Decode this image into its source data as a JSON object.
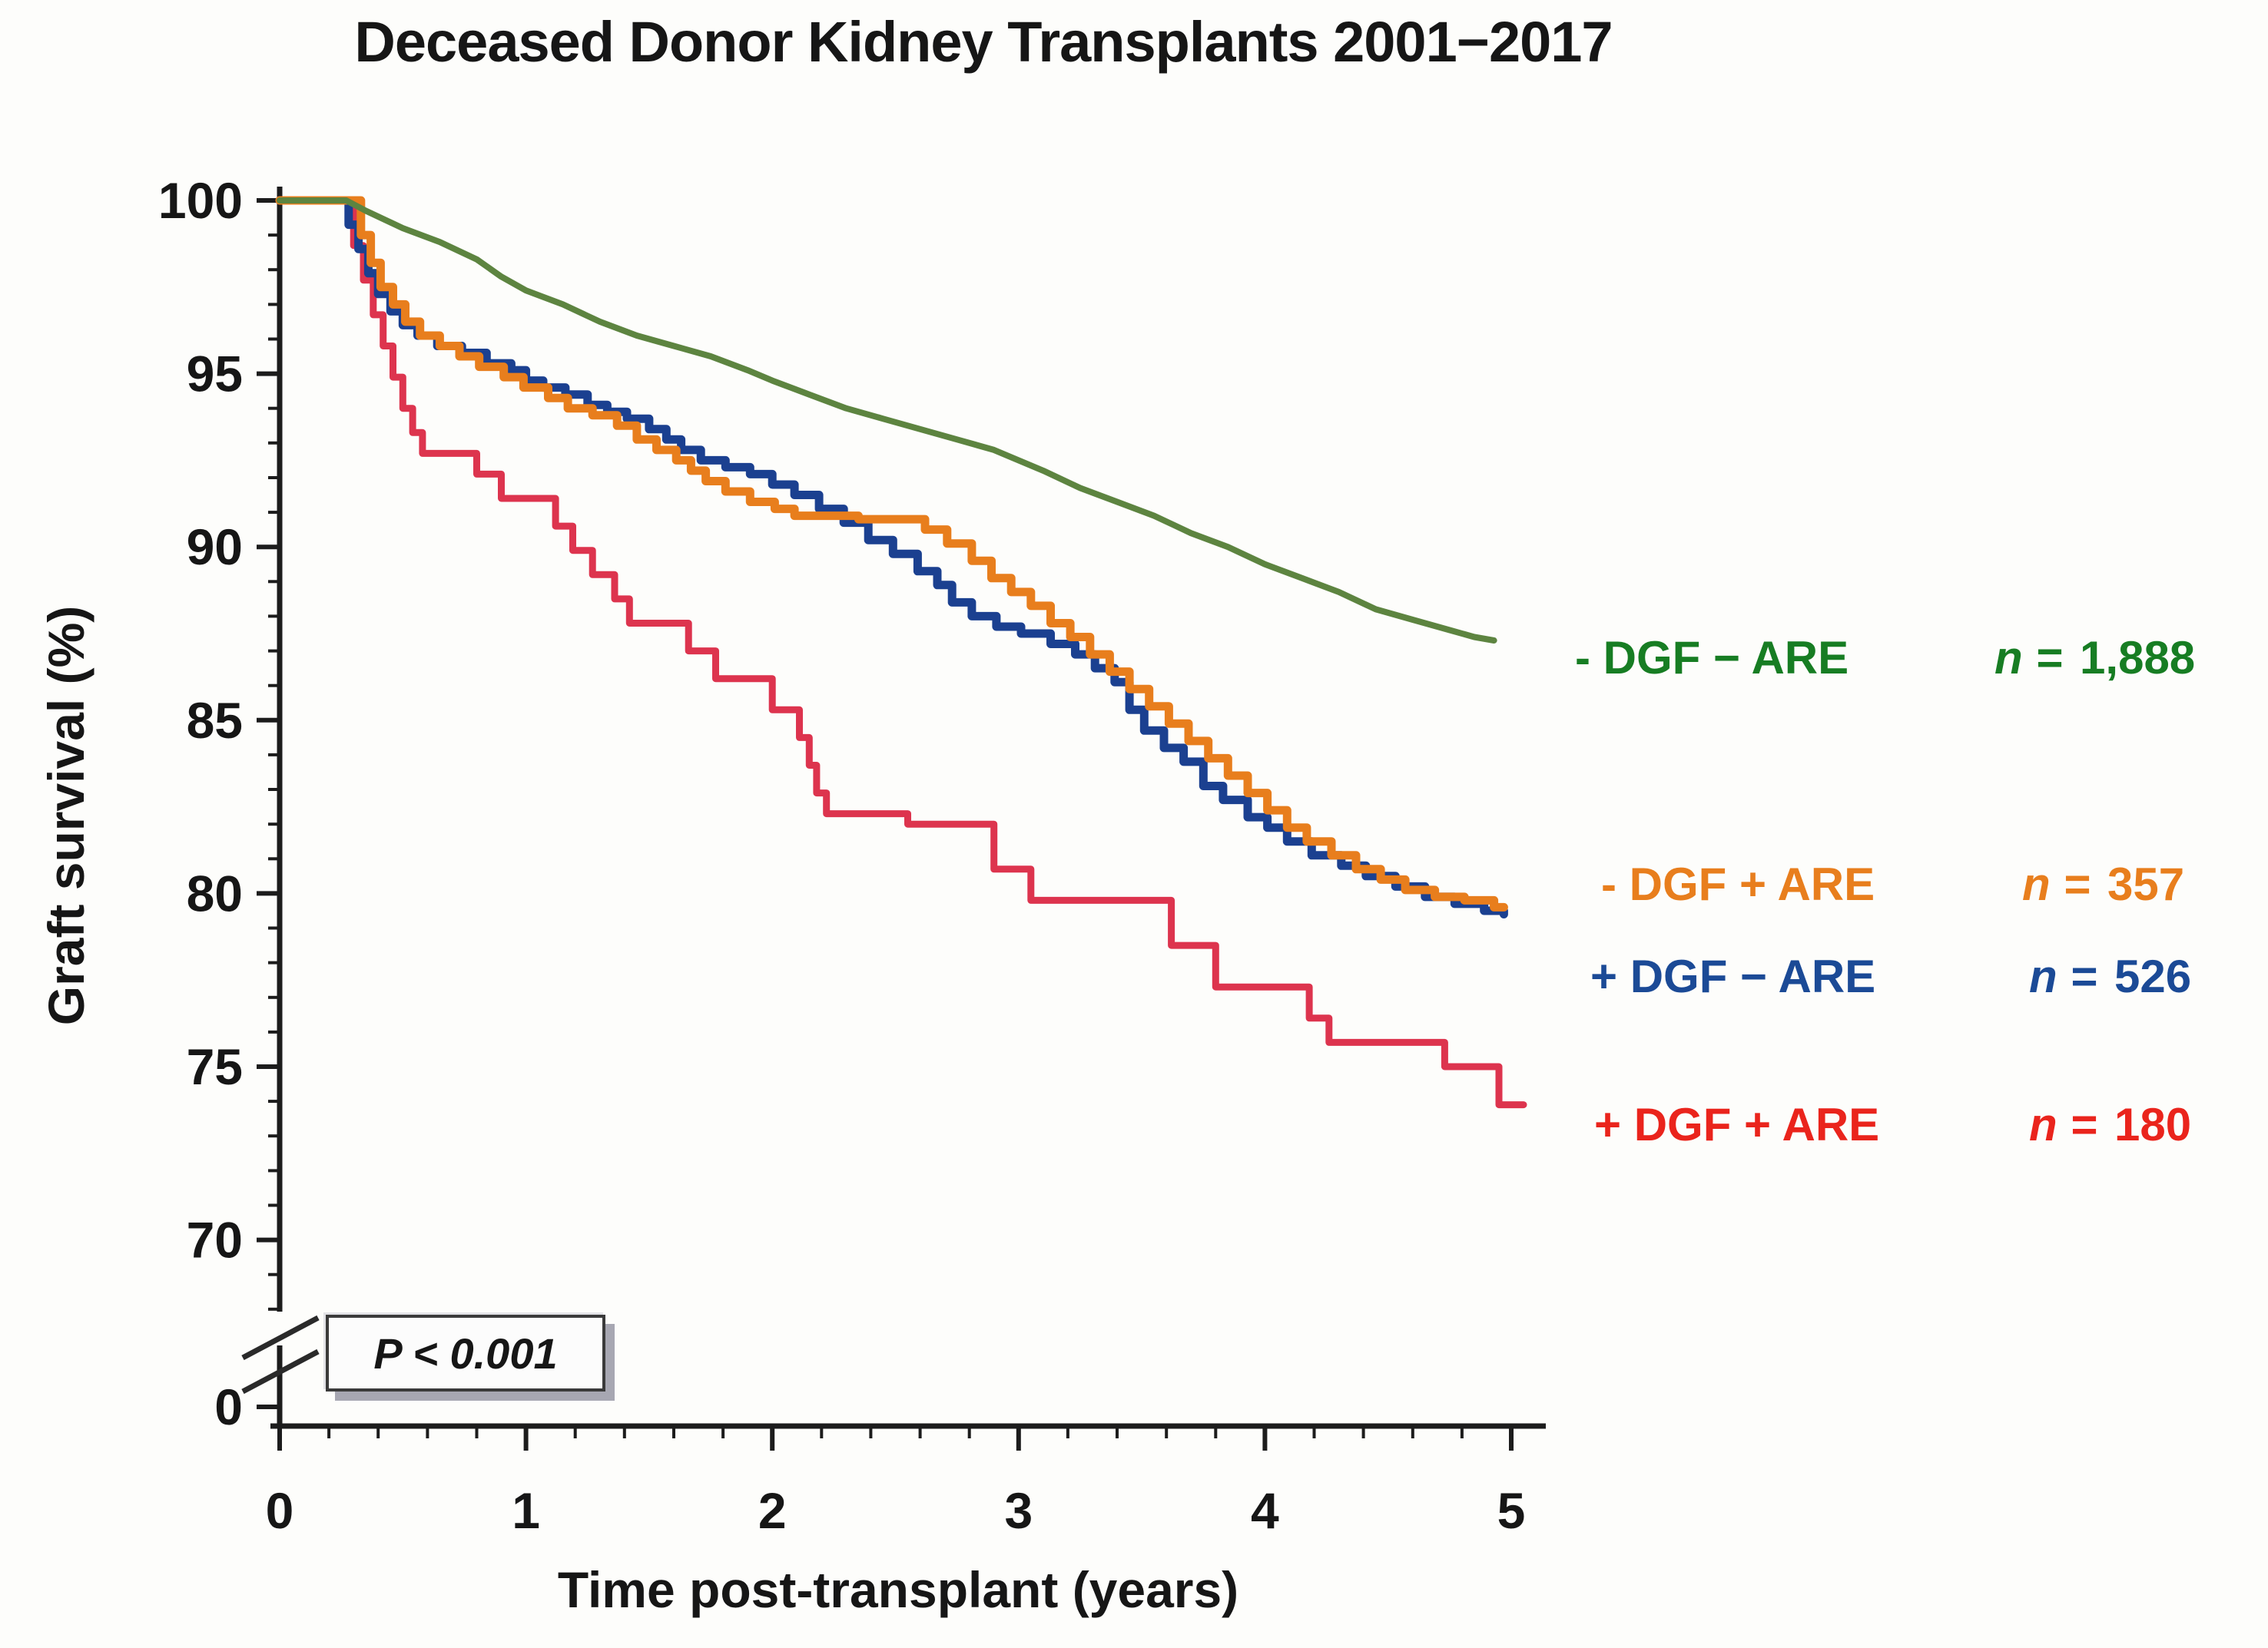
{
  "title": "Deceased Donor Kidney Transplants 2001−2017",
  "legend": {
    "n_prefix": "n = "
  },
  "chart_data": {
    "type": "line",
    "title": "Deceased Donor Kidney Transplants 2001−2017",
    "xlabel": "Time post-transplant (years)",
    "ylabel": "Graft survival (%)",
    "annotation": "P < 0.001",
    "x_ticks": [
      0,
      1,
      2,
      3,
      4,
      5
    ],
    "y_ticks": [
      100,
      95,
      90,
      85,
      80,
      75,
      70
    ],
    "y_break_label": "0",
    "x_minor_step": 0.2,
    "y_minor_step": 1,
    "xlim": [
      0,
      5.15
    ],
    "ylim": [
      70,
      100
    ],
    "y_axis_break": true,
    "grid": false,
    "legend_position": "right",
    "series": [
      {
        "id": "no-dgf-no-are",
        "group_label": "- DGF − ARE",
        "n_value": "1,888",
        "n": 1888,
        "color": "#5d8440",
        "legend_color": "#177d23",
        "style": "line",
        "points": [
          [
            0,
            100
          ],
          [
            0.27,
            100
          ],
          [
            0.35,
            99.7
          ],
          [
            0.5,
            99.2
          ],
          [
            0.65,
            98.8
          ],
          [
            0.8,
            98.3
          ],
          [
            0.9,
            97.8
          ],
          [
            1.0,
            97.4
          ],
          [
            1.15,
            97.0
          ],
          [
            1.3,
            96.5
          ],
          [
            1.45,
            96.1
          ],
          [
            1.6,
            95.8
          ],
          [
            1.75,
            95.5
          ],
          [
            1.9,
            95.1
          ],
          [
            2.0,
            94.8
          ],
          [
            2.15,
            94.4
          ],
          [
            2.3,
            94.0
          ],
          [
            2.45,
            93.7
          ],
          [
            2.6,
            93.4
          ],
          [
            2.75,
            93.1
          ],
          [
            2.9,
            92.8
          ],
          [
            3.0,
            92.5
          ],
          [
            3.1,
            92.2
          ],
          [
            3.25,
            91.7
          ],
          [
            3.4,
            91.3
          ],
          [
            3.55,
            90.9
          ],
          [
            3.7,
            90.4
          ],
          [
            3.85,
            90.0
          ],
          [
            4.0,
            89.5
          ],
          [
            4.15,
            89.1
          ],
          [
            4.3,
            88.7
          ],
          [
            4.45,
            88.2
          ],
          [
            4.6,
            87.9
          ],
          [
            4.75,
            87.6
          ],
          [
            4.85,
            87.4
          ],
          [
            4.93,
            87.3
          ]
        ]
      },
      {
        "id": "no-dgf-plus-are",
        "group_label": "- DGF + ARE",
        "n_value": "357",
        "n": 357,
        "color": "#e87e1d",
        "legend_color": "#e87e1d",
        "style": "step",
        "points": [
          [
            0,
            100
          ],
          [
            0.3,
            100
          ],
          [
            0.33,
            99.0
          ],
          [
            0.37,
            98.2
          ],
          [
            0.41,
            97.5
          ],
          [
            0.46,
            97.0
          ],
          [
            0.51,
            96.5
          ],
          [
            0.57,
            96.1
          ],
          [
            0.65,
            95.8
          ],
          [
            0.73,
            95.5
          ],
          [
            0.81,
            95.2
          ],
          [
            0.91,
            94.9
          ],
          [
            0.99,
            94.6
          ],
          [
            1.09,
            94.3
          ],
          [
            1.17,
            94.0
          ],
          [
            1.27,
            93.8
          ],
          [
            1.37,
            93.5
          ],
          [
            1.45,
            93.1
          ],
          [
            1.53,
            92.8
          ],
          [
            1.61,
            92.5
          ],
          [
            1.67,
            92.2
          ],
          [
            1.73,
            91.9
          ],
          [
            1.81,
            91.6
          ],
          [
            1.91,
            91.3
          ],
          [
            2.01,
            91.1
          ],
          [
            2.09,
            90.9
          ],
          [
            2.35,
            90.8
          ],
          [
            2.62,
            90.5
          ],
          [
            2.71,
            90.1
          ],
          [
            2.81,
            89.6
          ],
          [
            2.89,
            89.1
          ],
          [
            2.97,
            88.7
          ],
          [
            3.05,
            88.3
          ],
          [
            3.13,
            87.8
          ],
          [
            3.21,
            87.4
          ],
          [
            3.29,
            86.9
          ],
          [
            3.37,
            86.4
          ],
          [
            3.45,
            85.9
          ],
          [
            3.53,
            85.4
          ],
          [
            3.61,
            84.9
          ],
          [
            3.69,
            84.4
          ],
          [
            3.77,
            83.9
          ],
          [
            3.85,
            83.4
          ],
          [
            3.93,
            82.9
          ],
          [
            4.01,
            82.4
          ],
          [
            4.09,
            81.9
          ],
          [
            4.17,
            81.5
          ],
          [
            4.27,
            81.1
          ],
          [
            4.37,
            80.7
          ],
          [
            4.47,
            80.4
          ],
          [
            4.57,
            80.1
          ],
          [
            4.69,
            79.9
          ],
          [
            4.81,
            79.8
          ],
          [
            4.93,
            79.6
          ],
          [
            4.97,
            79.6
          ]
        ]
      },
      {
        "id": "plus-dgf-no-are",
        "group_label": "+ DGF − ARE",
        "n_value": "526",
        "n": 526,
        "color": "#1b4090",
        "legend_color": "#1b4a96",
        "style": "step",
        "points": [
          [
            0,
            100
          ],
          [
            0.25,
            100
          ],
          [
            0.28,
            99.3
          ],
          [
            0.32,
            98.6
          ],
          [
            0.36,
            97.9
          ],
          [
            0.4,
            97.3
          ],
          [
            0.45,
            96.8
          ],
          [
            0.5,
            96.4
          ],
          [
            0.56,
            96.1
          ],
          [
            0.64,
            95.8
          ],
          [
            0.74,
            95.6
          ],
          [
            0.84,
            95.3
          ],
          [
            0.94,
            95.1
          ],
          [
            1.0,
            94.8
          ],
          [
            1.07,
            94.6
          ],
          [
            1.16,
            94.4
          ],
          [
            1.25,
            94.1
          ],
          [
            1.33,
            93.9
          ],
          [
            1.41,
            93.7
          ],
          [
            1.5,
            93.4
          ],
          [
            1.57,
            93.1
          ],
          [
            1.63,
            92.8
          ],
          [
            1.71,
            92.5
          ],
          [
            1.81,
            92.3
          ],
          [
            1.91,
            92.1
          ],
          [
            2.0,
            91.8
          ],
          [
            2.09,
            91.5
          ],
          [
            2.19,
            91.1
          ],
          [
            2.29,
            90.7
          ],
          [
            2.39,
            90.2
          ],
          [
            2.49,
            89.8
          ],
          [
            2.59,
            89.3
          ],
          [
            2.67,
            88.9
          ],
          [
            2.73,
            88.4
          ],
          [
            2.81,
            88.0
          ],
          [
            2.91,
            87.7
          ],
          [
            3.01,
            87.5
          ],
          [
            3.13,
            87.2
          ],
          [
            3.23,
            86.9
          ],
          [
            3.31,
            86.5
          ],
          [
            3.39,
            86.1
          ],
          [
            3.45,
            85.3
          ],
          [
            3.51,
            84.7
          ],
          [
            3.59,
            84.2
          ],
          [
            3.67,
            83.8
          ],
          [
            3.75,
            83.1
          ],
          [
            3.83,
            82.7
          ],
          [
            3.93,
            82.2
          ],
          [
            4.01,
            81.9
          ],
          [
            4.09,
            81.5
          ],
          [
            4.19,
            81.1
          ],
          [
            4.31,
            80.8
          ],
          [
            4.41,
            80.5
          ],
          [
            4.53,
            80.2
          ],
          [
            4.65,
            79.9
          ],
          [
            4.77,
            79.7
          ],
          [
            4.89,
            79.5
          ],
          [
            4.97,
            79.4
          ]
        ]
      },
      {
        "id": "plus-dgf-plus-are",
        "group_label": "+ DGF + ARE",
        "n_value": "180",
        "n": 180,
        "color": "#dd344e",
        "legend_color": "#ea241c",
        "style": "step",
        "points": [
          [
            0,
            100
          ],
          [
            0.27,
            100
          ],
          [
            0.3,
            98.7
          ],
          [
            0.34,
            97.7
          ],
          [
            0.38,
            96.7
          ],
          [
            0.42,
            95.8
          ],
          [
            0.46,
            94.9
          ],
          [
            0.5,
            94.0
          ],
          [
            0.54,
            93.3
          ],
          [
            0.58,
            92.7
          ],
          [
            0.8,
            92.1
          ],
          [
            0.9,
            91.4
          ],
          [
            1.12,
            90.6
          ],
          [
            1.19,
            89.9
          ],
          [
            1.27,
            89.2
          ],
          [
            1.36,
            88.5
          ],
          [
            1.42,
            87.8
          ],
          [
            1.66,
            87.0
          ],
          [
            1.77,
            86.2
          ],
          [
            2.0,
            85.3
          ],
          [
            2.11,
            84.5
          ],
          [
            2.15,
            83.7
          ],
          [
            2.18,
            82.9
          ],
          [
            2.22,
            82.3
          ],
          [
            2.55,
            82.0
          ],
          [
            2.9,
            80.7
          ],
          [
            3.05,
            79.8
          ],
          [
            3.62,
            78.5
          ],
          [
            3.8,
            77.3
          ],
          [
            4.18,
            76.4
          ],
          [
            4.26,
            75.7
          ],
          [
            4.73,
            75.0
          ],
          [
            4.95,
            73.9
          ],
          [
            5.05,
            73.9
          ]
        ]
      }
    ]
  }
}
